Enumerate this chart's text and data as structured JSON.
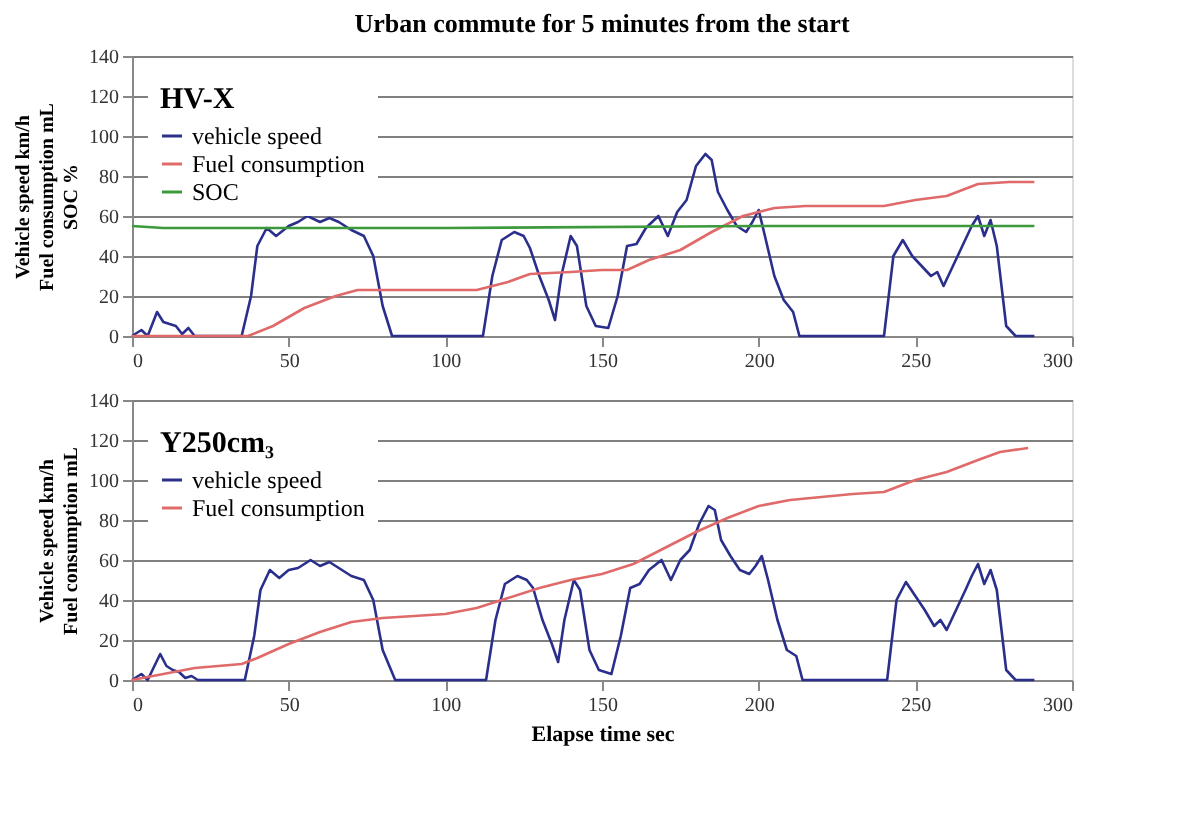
{
  "chart_data": [
    {
      "type": "line",
      "title": "Urban commute  for 5 minutes from the start",
      "ylabel": "Vehicle speed km/h\nFuel consumption mL\nSOC %",
      "legend_title": "HV-X",
      "legend": "top left",
      "grid": "y",
      "marker": "none",
      "line_style": "solid",
      "xlim": [
        0,
        300
      ],
      "xticks": [
        0,
        50,
        100,
        150,
        200,
        250,
        300
      ],
      "ylim": [
        0,
        140
      ],
      "yticks": [
        0,
        20,
        40,
        60,
        80,
        100,
        120,
        140
      ],
      "series": [
        {
          "name": "vehicle speed",
          "color": "#2b2f8c",
          "x": [
            0,
            3,
            5,
            8,
            10,
            12,
            14,
            16,
            18,
            20,
            35,
            38,
            40,
            43,
            46,
            50,
            53,
            56,
            60,
            63,
            66,
            70,
            74,
            77,
            80,
            83,
            112,
            115,
            118,
            122,
            125,
            127,
            130,
            133,
            135,
            137,
            140,
            142,
            145,
            148,
            152,
            155,
            158,
            161,
            164,
            168,
            171,
            174,
            177,
            180,
            183,
            185,
            187,
            190,
            193,
            196,
            198,
            200,
            202,
            205,
            208,
            211,
            213,
            240,
            243,
            246,
            249,
            252,
            255,
            257,
            259,
            262,
            265,
            268,
            270,
            272,
            274,
            276,
            279,
            282,
            288
          ],
          "values": [
            0,
            3,
            0,
            12,
            7,
            6,
            5,
            1,
            4,
            0,
            0,
            20,
            45,
            54,
            50,
            55,
            57,
            60,
            57,
            59,
            57,
            53,
            50,
            40,
            15,
            0,
            0,
            30,
            48,
            52,
            50,
            44,
            30,
            18,
            8,
            30,
            50,
            45,
            15,
            5,
            4,
            20,
            45,
            46,
            54,
            60,
            50,
            62,
            68,
            85,
            91,
            88,
            72,
            63,
            55,
            52,
            57,
            63,
            50,
            30,
            18,
            12,
            0,
            0,
            40,
            48,
            40,
            35,
            30,
            32,
            25,
            35,
            45,
            55,
            60,
            50,
            58,
            45,
            5,
            0,
            0
          ]
        },
        {
          "name": "Fuel consumption",
          "color": "#e06a6a",
          "x": [
            0,
            37,
            45,
            55,
            65,
            72,
            110,
            120,
            127,
            140,
            150,
            158,
            165,
            175,
            185,
            195,
            205,
            215,
            240,
            250,
            260,
            270,
            280,
            288
          ],
          "values": [
            0,
            0,
            5,
            14,
            20,
            23,
            23,
            27,
            31,
            32,
            33,
            33,
            38,
            43,
            52,
            60,
            64,
            65,
            65,
            68,
            70,
            76,
            77,
            77
          ]
        },
        {
          "name": "SOC",
          "color": "#3c9a3c",
          "x": [
            0,
            10,
            100,
            200,
            240,
            288
          ],
          "values": [
            55,
            54,
            54,
            55,
            55,
            55
          ]
        }
      ]
    },
    {
      "type": "line",
      "xlabel": "Elapse time  sec",
      "ylabel": "Vehicle speed km/h\nFuel consumption mL",
      "legend_title": "Y250cm₃",
      "legend": "top left",
      "grid": "y",
      "marker": "none",
      "line_style": "solid",
      "xlim": [
        0,
        300
      ],
      "xticks": [
        0,
        50,
        100,
        150,
        200,
        250,
        300
      ],
      "ylim": [
        0,
        140
      ],
      "yticks": [
        0,
        20,
        40,
        60,
        80,
        100,
        120,
        140
      ],
      "series": [
        {
          "name": "vehicle speed",
          "color": "#2b2f8c",
          "x": [
            0,
            3,
            5,
            9,
            11,
            13,
            15,
            17,
            19,
            21,
            36,
            39,
            41,
            44,
            47,
            50,
            53,
            57,
            60,
            63,
            66,
            70,
            74,
            77,
            80,
            84,
            113,
            116,
            119,
            123,
            126,
            128,
            131,
            134,
            136,
            138,
            141,
            143,
            146,
            149,
            153,
            156,
            159,
            162,
            165,
            169,
            172,
            175,
            178,
            181,
            184,
            186,
            188,
            191,
            194,
            197,
            199,
            201,
            203,
            206,
            209,
            212,
            214,
            241,
            244,
            247,
            250,
            253,
            256,
            258,
            260,
            263,
            266,
            268,
            270,
            272,
            274,
            276,
            279,
            282,
            288
          ],
          "values": [
            0,
            3,
            0,
            13,
            7,
            5,
            4,
            1,
            2,
            0,
            0,
            22,
            45,
            55,
            51,
            55,
            56,
            60,
            57,
            59,
            56,
            52,
            50,
            40,
            15,
            0,
            0,
            30,
            48,
            52,
            50,
            46,
            30,
            18,
            9,
            30,
            50,
            45,
            15,
            5,
            3,
            22,
            46,
            48,
            55,
            60,
            50,
            60,
            65,
            78,
            87,
            85,
            70,
            62,
            55,
            53,
            57,
            62,
            50,
            30,
            15,
            12,
            0,
            0,
            40,
            49,
            42,
            35,
            27,
            30,
            25,
            35,
            45,
            52,
            58,
            48,
            55,
            45,
            5,
            0,
            0
          ]
        },
        {
          "name": "Fuel consumption",
          "color": "#e06a6a",
          "x": [
            0,
            10,
            20,
            35,
            40,
            50,
            60,
            70,
            80,
            100,
            110,
            120,
            130,
            140,
            150,
            160,
            170,
            180,
            190,
            200,
            210,
            230,
            240,
            250,
            260,
            270,
            277,
            286
          ],
          "values": [
            0,
            3,
            6,
            8,
            11,
            18,
            24,
            29,
            31,
            33,
            36,
            41,
            46,
            50,
            53,
            58,
            66,
            74,
            81,
            87,
            90,
            93,
            94,
            100,
            104,
            110,
            114,
            116
          ]
        }
      ]
    }
  ]
}
